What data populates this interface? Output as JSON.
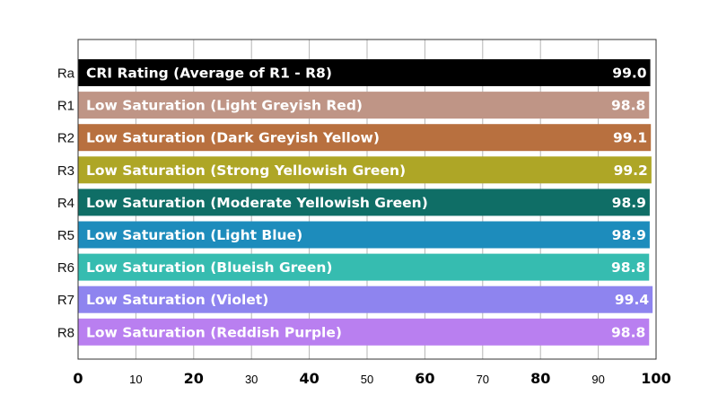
{
  "chart_data": {
    "type": "bar",
    "orientation": "horizontal",
    "xlim": [
      0,
      100
    ],
    "grid": true,
    "x_ticks": [
      {
        "value": 0,
        "label": "0",
        "major": true
      },
      {
        "value": 10,
        "label": "10",
        "major": false
      },
      {
        "value": 20,
        "label": "20",
        "major": true
      },
      {
        "value": 30,
        "label": "30",
        "major": false
      },
      {
        "value": 40,
        "label": "40",
        "major": true
      },
      {
        "value": 50,
        "label": "50",
        "major": false
      },
      {
        "value": 60,
        "label": "60",
        "major": true
      },
      {
        "value": 70,
        "label": "70",
        "major": false
      },
      {
        "value": 80,
        "label": "80",
        "major": true
      },
      {
        "value": 90,
        "label": "90",
        "major": false
      },
      {
        "value": 100,
        "label": "100",
        "major": true
      }
    ],
    "bars": [
      {
        "code": "Ra",
        "label": "CRI Rating (Average of R1 - R8)",
        "value": 99.0,
        "value_label": "99.0",
        "color": "#000000"
      },
      {
        "code": "R1",
        "label": "Low Saturation (Light Greyish Red)",
        "value": 98.8,
        "value_label": "98.8",
        "color": "#bf9586"
      },
      {
        "code": "R2",
        "label": "Low Saturation (Dark Greyish Yellow)",
        "value": 99.1,
        "value_label": "99.1",
        "color": "#b8703f"
      },
      {
        "code": "R3",
        "label": "Low Saturation (Strong Yellowish Green)",
        "value": 99.2,
        "value_label": "99.2",
        "color": "#aea626"
      },
      {
        "code": "R4",
        "label": "Low Saturation (Moderate Yellowish Green)",
        "value": 98.9,
        "value_label": "98.9",
        "color": "#0f6e66"
      },
      {
        "code": "R5",
        "label": "Low Saturation (Light Blue)",
        "value": 98.9,
        "value_label": "98.9",
        "color": "#1d8cbc"
      },
      {
        "code": "R6",
        "label": "Low Saturation (Blueish Green)",
        "value": 98.8,
        "value_label": "98.8",
        "color": "#36bcb0"
      },
      {
        "code": "R7",
        "label": "Low Saturation (Violet)",
        "value": 99.4,
        "value_label": "99.4",
        "color": "#8e84ef"
      },
      {
        "code": "R8",
        "label": "Low Saturation (Reddish Purple)",
        "value": 98.8,
        "value_label": "98.8",
        "color": "#b97ff0"
      }
    ]
  }
}
